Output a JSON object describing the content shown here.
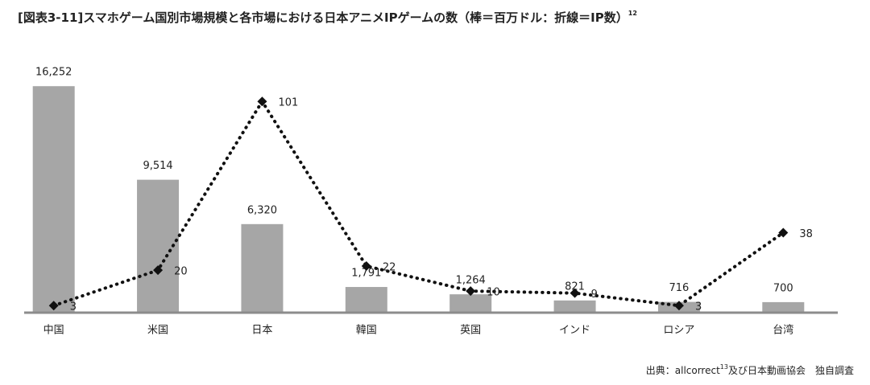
{
  "chart_data": {
    "type": "bar",
    "title": "[図表3-11]スマホゲーム国別市場規模と各市場における日本アニメIPゲームの数（棒＝百万ドル：折線＝IP数）",
    "title_note": "12",
    "source": "出典：allcorrect",
    "source_note": "13",
    "source_rest": "及び日本動画協会　独自調査",
    "categories": [
      "中国",
      "米国",
      "日本",
      "韓国",
      "英国",
      "インド",
      "ロシア",
      "台湾"
    ],
    "series": [
      {
        "type": "bar",
        "color": "#a6a6a6",
        "values": [
          16252,
          9514,
          6320,
          1791,
          1264,
          821,
          716,
          700
        ],
        "value_labels": [
          "16,252",
          "9,514",
          "6,320",
          "1,791",
          "1,264",
          "821",
          "716",
          "700"
        ]
      },
      {
        "type": "line",
        "axis": "y2",
        "color": "#111111",
        "values": [
          3,
          20,
          101,
          22,
          10,
          9,
          3,
          38
        ]
      }
    ],
    "ylim": [
      0,
      18000
    ],
    "y2lim": [
      0,
      120
    ]
  }
}
